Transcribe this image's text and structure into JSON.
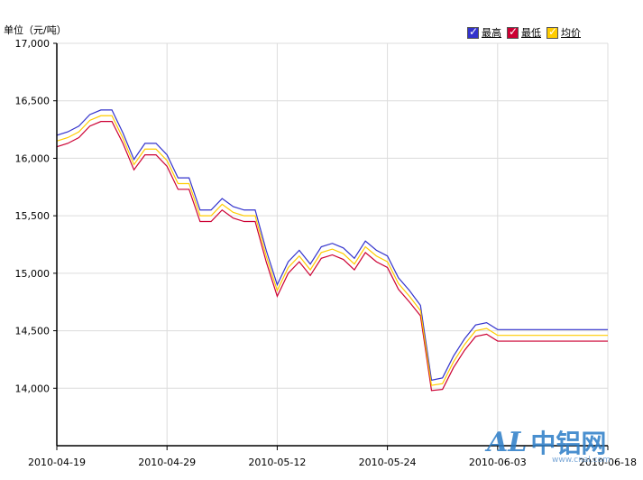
{
  "unit_label": "单位（元/吨）",
  "legend": [
    {
      "label": "最高",
      "color": "#3333cc",
      "checked": true
    },
    {
      "label": "最低",
      "color": "#cc0033",
      "checked": true
    },
    {
      "label": "均价",
      "color": "#ffcc00",
      "checked": true
    }
  ],
  "watermark": {
    "logo": "AL",
    "text": "中铝网",
    "url": "www.cnal.com"
  },
  "chart_data": {
    "type": "line",
    "x_tick_labels": [
      "2010-04-19",
      "2010-04-29",
      "2010-05-12",
      "2010-05-24",
      "2010-06-03",
      "2010-06-18"
    ],
    "x_tick_positions": [
      0,
      10,
      20,
      30,
      40,
      50
    ],
    "x": [
      0,
      1,
      2,
      3,
      4,
      5,
      6,
      7,
      8,
      9,
      10,
      11,
      12,
      13,
      14,
      15,
      16,
      17,
      18,
      19,
      20,
      21,
      22,
      23,
      24,
      25,
      26,
      27,
      28,
      29,
      30,
      31,
      32,
      33,
      34,
      35,
      36,
      37,
      38,
      39,
      40,
      41,
      42,
      43,
      44,
      45,
      46,
      47,
      48,
      49,
      50
    ],
    "ylim": [
      13500,
      17000
    ],
    "y_ticks": [
      14000,
      14500,
      15000,
      15500,
      16000,
      16500,
      17000
    ],
    "y_tick_labels": [
      "14,000",
      "14,500",
      "15,000",
      "15,500",
      "16,000",
      "16,500",
      "17,000"
    ],
    "grid": true,
    "legend_position": "top-right",
    "series": [
      {
        "name": "最高",
        "color": "#3333cc",
        "values": [
          16200,
          16230,
          16280,
          16380,
          16420,
          16420,
          16220,
          15990,
          16130,
          16130,
          16030,
          15830,
          15830,
          15550,
          15550,
          15650,
          15580,
          15550,
          15550,
          15200,
          14900,
          15100,
          15200,
          15080,
          15230,
          15260,
          15220,
          15130,
          15280,
          15200,
          15150,
          14960,
          14850,
          14720,
          14070,
          14090,
          14280,
          14430,
          14550,
          14570,
          14510,
          14510,
          14510,
          14510,
          14510,
          14510,
          14510,
          14510,
          14510,
          14510,
          14510
        ]
      },
      {
        "name": "最低",
        "color": "#cc0033",
        "values": [
          16100,
          16130,
          16180,
          16280,
          16320,
          16320,
          16130,
          15900,
          16030,
          16030,
          15930,
          15730,
          15730,
          15450,
          15450,
          15550,
          15480,
          15450,
          15450,
          15100,
          14800,
          15000,
          15100,
          14980,
          15130,
          15160,
          15120,
          15030,
          15180,
          15100,
          15050,
          14860,
          14750,
          14630,
          13980,
          13990,
          14180,
          14330,
          14450,
          14470,
          14410,
          14410,
          14410,
          14410,
          14410,
          14410,
          14410,
          14410,
          14410,
          14410,
          14410
        ]
      },
      {
        "name": "均价",
        "color": "#ffcc00",
        "values": [
          16150,
          16180,
          16230,
          16330,
          16370,
          16370,
          16175,
          15945,
          16080,
          16080,
          15980,
          15780,
          15780,
          15500,
          15500,
          15600,
          15530,
          15500,
          15500,
          15150,
          14850,
          15050,
          15150,
          15030,
          15180,
          15210,
          15170,
          15080,
          15230,
          15150,
          15100,
          14910,
          14800,
          14675,
          14025,
          14040,
          14230,
          14380,
          14500,
          14520,
          14460,
          14460,
          14460,
          14460,
          14460,
          14460,
          14460,
          14460,
          14460,
          14460,
          14460
        ]
      }
    ]
  }
}
